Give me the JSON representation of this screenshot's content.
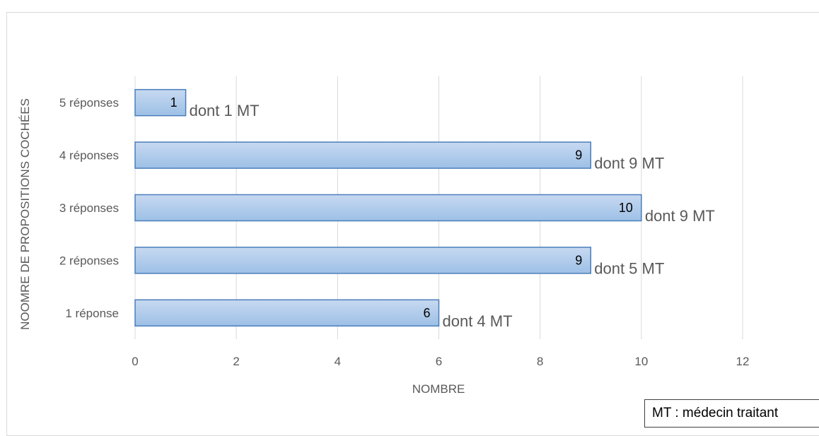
{
  "chart_data": {
    "type": "bar",
    "orientation": "horizontal",
    "title": "",
    "xlabel": "NOMBRE",
    "ylabel": "NOOMRE DE PROPOSITIONS COCHÉES",
    "categories": [
      "1 réponse",
      "2 réponses",
      "3 réponses",
      "4 réponses",
      "5 réponses"
    ],
    "values": [
      6,
      9,
      10,
      9,
      1
    ],
    "data_labels": [
      "6",
      "9",
      "10",
      "9",
      "1"
    ],
    "annotations": [
      "dont 4 MT",
      "dont 5 MT",
      "dont 9 MT",
      "dont 9 MT",
      "dont 1 MT"
    ],
    "xlim": [
      0,
      12
    ],
    "x_ticks": [
      "0",
      "2",
      "4",
      "6",
      "8",
      "10",
      "12"
    ],
    "grid": "vertical",
    "bar_fill_top": "#c7d9f1",
    "bar_fill_bottom": "#9dc0e6",
    "bar_stroke": "#4a7ebb",
    "grid_color": "#d9d9d9",
    "text_color": "#595959",
    "legend_note": "MT : médecin traitant"
  }
}
